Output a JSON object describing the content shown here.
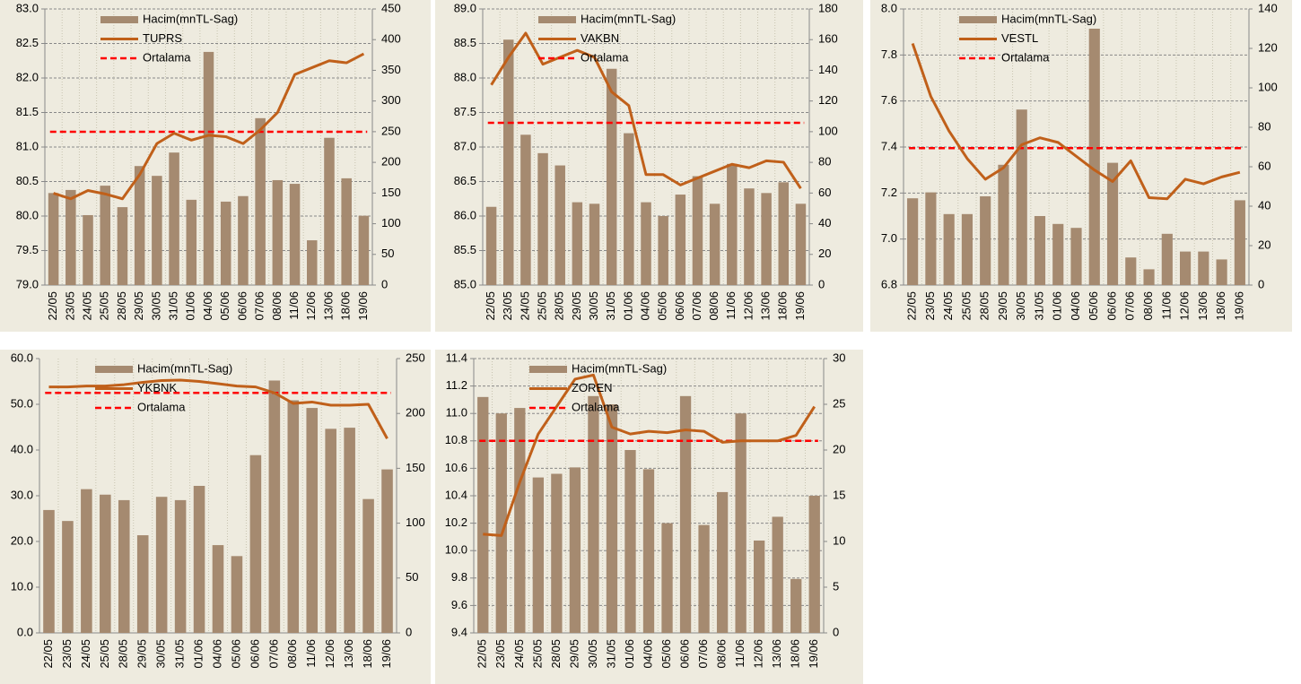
{
  "chart_data": [
    {
      "type": "combo",
      "categories": [
        "22/05",
        "23/05",
        "24/05",
        "25/05",
        "28/05",
        "29/05",
        "30/05",
        "31/05",
        "01/06",
        "04/06",
        "05/06",
        "06/06",
        "07/06",
        "08/06",
        "11/06",
        "12/06",
        "13/06",
        "18/06",
        "19/06"
      ],
      "ylim": [
        79,
        83
      ],
      "yticks": [
        {
          "value": 79,
          "label": "79.0"
        },
        79.5,
        {
          "value": 80,
          "label": "80.0"
        },
        80.5,
        {
          "value": 81,
          "label": "81.0"
        },
        81.5,
        {
          "value": 82,
          "label": "82.0"
        },
        82.5,
        {
          "value": 83,
          "label": "83.0"
        }
      ],
      "y2lim": [
        0,
        450
      ],
      "y2ticks": [
        0,
        50,
        100,
        150,
        200,
        250,
        300,
        350,
        400,
        450
      ],
      "grid": true,
      "series": [
        {
          "name": "Hacim(mnTL-Sag)",
          "type": "bar",
          "axis": "y2",
          "color": "#a58a70",
          "values": [
            150,
            155,
            114,
            162,
            127,
            194,
            178,
            216,
            139,
            380,
            136,
            145,
            272,
            171,
            165,
            73,
            240,
            174,
            113
          ]
        },
        {
          "name": "TUPRS",
          "type": "line",
          "color": "#c0601a",
          "values": [
            80.33,
            80.25,
            80.37,
            80.32,
            80.25,
            80.6,
            81.05,
            81.2,
            81.1,
            81.17,
            81.15,
            81.05,
            81.25,
            81.5,
            82.05,
            82.15,
            82.25,
            82.22,
            82.35
          ]
        },
        {
          "name": "Ortalama",
          "type": "average",
          "color": "#ff0000",
          "value": 81.22
        }
      ]
    },
    {
      "type": "combo",
      "categories": [
        "22/05",
        "23/05",
        "24/05",
        "25/05",
        "28/05",
        "29/05",
        "30/05",
        "31/05",
        "01/06",
        "04/06",
        "05/06",
        "06/06",
        "07/06",
        "08/06",
        "11/06",
        "12/06",
        "13/06",
        "18/06",
        "19/06"
      ],
      "ylim": [
        85,
        89
      ],
      "yticks": [
        {
          "value": 85,
          "label": "85.0"
        },
        85.5,
        {
          "value": 86,
          "label": "86.0"
        },
        86.5,
        {
          "value": 87,
          "label": "87.0"
        },
        87.5,
        {
          "value": 88,
          "label": "88.0"
        },
        88.5,
        {
          "value": 89,
          "label": "89.0"
        }
      ],
      "y2lim": [
        0,
        180
      ],
      "y2ticks": [
        0,
        20,
        40,
        60,
        80,
        100,
        120,
        140,
        160,
        180
      ],
      "grid": true,
      "series": [
        {
          "name": "Hacim(mnTL-Sag)",
          "type": "bar",
          "axis": "y2",
          "color": "#a58a70",
          "values": [
            51,
            160,
            98,
            86,
            78,
            54,
            53,
            141,
            99,
            54,
            45,
            59,
            71,
            53,
            79,
            63,
            60,
            67,
            53
          ]
        },
        {
          "name": "VAKBN",
          "type": "line",
          "color": "#c0601a",
          "values": [
            87.9,
            88.3,
            88.65,
            88.2,
            88.3,
            88.4,
            88.3,
            87.8,
            87.6,
            86.6,
            86.6,
            86.45,
            86.55,
            86.65,
            86.75,
            86.7,
            86.8,
            86.78,
            86.4
          ]
        },
        {
          "name": "Ortalama",
          "type": "average",
          "color": "#ff0000",
          "value": 87.35
        }
      ]
    },
    {
      "type": "combo",
      "categories": [
        "22/05",
        "23/05",
        "24/05",
        "25/05",
        "28/05",
        "29/05",
        "30/05",
        "31/05",
        "01/06",
        "04/06",
        "05/06",
        "06/06",
        "07/06",
        "08/06",
        "11/06",
        "12/06",
        "13/06",
        "18/06",
        "19/06"
      ],
      "ylim": [
        6.8,
        8.0
      ],
      "yticks": [
        6.8,
        {
          "value": 7,
          "label": "7.0"
        },
        7.2,
        7.4,
        7.6,
        7.8,
        {
          "value": 8,
          "label": "8.0"
        }
      ],
      "y2lim": [
        0,
        140
      ],
      "y2ticks": [
        0,
        20,
        40,
        60,
        80,
        100,
        120,
        140
      ],
      "grid": true,
      "series": [
        {
          "name": "Hacim(mnTL-Sag)",
          "type": "bar",
          "axis": "y2",
          "color": "#a58a70",
          "values": [
            44,
            47,
            36,
            36,
            45,
            61,
            89,
            35,
            31,
            29,
            130,
            62,
            14,
            8,
            26,
            17,
            17,
            13,
            43
          ]
        },
        {
          "name": "VESTL",
          "type": "line",
          "color": "#c0601a",
          "values": [
            7.85,
            7.62,
            7.47,
            7.35,
            7.26,
            7.31,
            7.41,
            7.44,
            7.42,
            7.36,
            7.3,
            7.25,
            7.34,
            7.18,
            7.175,
            7.26,
            7.24,
            7.27,
            7.29
          ]
        },
        {
          "name": "Ortalama",
          "type": "average",
          "color": "#ff0000",
          "value": 7.395
        }
      ]
    },
    {
      "type": "combo",
      "categories": [
        "22/05",
        "23/05",
        "24/05",
        "25/05",
        "28/05",
        "29/05",
        "30/05",
        "31/05",
        "01/06",
        "04/06",
        "05/06",
        "06/06",
        "07/06",
        "08/06",
        "11/06",
        "12/06",
        "13/06",
        "18/06",
        "19/06"
      ],
      "ylim": [
        0,
        60
      ],
      "yticks": [
        {
          "value": 0,
          "label": "0.0"
        },
        {
          "value": 10,
          "label": "10.0"
        },
        {
          "value": 20,
          "label": "20.0"
        },
        {
          "value": 30,
          "label": "30.0"
        },
        {
          "value": 40,
          "label": "40.0"
        },
        {
          "value": 50,
          "label": "50.0"
        },
        {
          "value": 60,
          "label": "60.0"
        }
      ],
      "y2lim": [
        0,
        250
      ],
      "y2ticks": [
        0,
        50,
        100,
        150,
        200,
        250
      ],
      "grid": false,
      "series": [
        {
          "name": "Hacim(mnTL-Sag)",
          "type": "bar",
          "axis": "y2",
          "color": "#a58a70",
          "values": [
            112,
            102,
            131,
            126,
            121,
            89,
            124,
            121,
            134,
            80,
            70,
            162,
            230,
            212,
            205,
            186,
            187,
            122,
            149
          ]
        },
        {
          "name": "YKBNK",
          "type": "line",
          "color": "#c0601a",
          "values": [
            53.8,
            53.8,
            54.0,
            54.0,
            54.3,
            54.8,
            55.2,
            55.3,
            55.0,
            54.5,
            54.0,
            53.8,
            52.5,
            50.2,
            50.5,
            49.8,
            49.8,
            50.0,
            42.5
          ]
        },
        {
          "name": "Ortalama",
          "type": "average",
          "color": "#ff0000",
          "value": 52.5
        }
      ]
    },
    {
      "type": "combo",
      "categories": [
        "22/05",
        "23/05",
        "24/05",
        "25/05",
        "28/05",
        "29/05",
        "30/05",
        "31/05",
        "01/06",
        "04/06",
        "05/06",
        "06/06",
        "07/06",
        "08/06",
        "11/06",
        "12/06",
        "13/06",
        "18/06",
        "19/06"
      ],
      "ylim": [
        9.4,
        11.4
      ],
      "yticks": [
        9.4,
        9.6,
        9.8,
        {
          "value": 10,
          "label": "10.0"
        },
        10.2,
        10.4,
        10.6,
        10.8,
        {
          "value": 11,
          "label": "11.0"
        },
        11.2,
        11.4
      ],
      "y2lim": [
        0,
        30
      ],
      "y2ticks": [
        0,
        5,
        10,
        15,
        20,
        25,
        30
      ],
      "grid": true,
      "series": [
        {
          "name": "Hacim(mnTL-Sag)",
          "type": "bar",
          "axis": "y2",
          "color": "#a58a70",
          "values": [
            25.8,
            24,
            24.6,
            17,
            17.4,
            18.1,
            25.9,
            25,
            20,
            17.9,
            12,
            25.9,
            11.8,
            15.4,
            24,
            10.1,
            12.7,
            5.9,
            15
          ]
        },
        {
          "name": "ZOREN",
          "type": "line",
          "color": "#c0601a",
          "values": [
            10.12,
            10.11,
            10.5,
            10.85,
            11.05,
            11.25,
            11.28,
            10.9,
            10.85,
            10.87,
            10.86,
            10.88,
            10.87,
            10.79,
            10.8,
            10.8,
            10.8,
            10.84,
            11.05
          ]
        },
        {
          "name": "Ortalama",
          "type": "average",
          "color": "#ff0000",
          "value": 10.8
        }
      ]
    }
  ]
}
